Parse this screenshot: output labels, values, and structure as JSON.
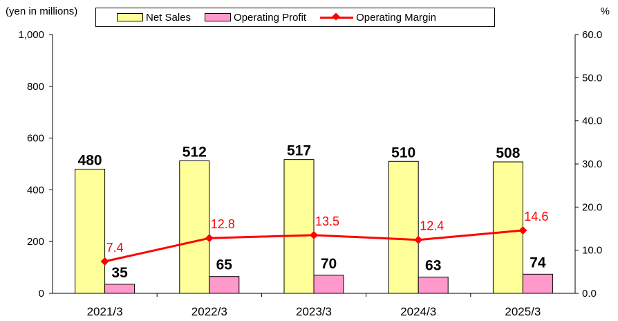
{
  "units": {
    "left": "(yen in millions)",
    "right": "%"
  },
  "legend": {
    "net_sales": "Net Sales",
    "operating_profit": "Operating Profit",
    "operating_margin": "Operating Margin"
  },
  "colors": {
    "net_sales": "#ffff99",
    "operating_profit": "#ff99cc",
    "operating_margin": "#ff0000"
  },
  "chart_data": {
    "type": "bar",
    "categories": [
      "2021/3",
      "2022/3",
      "2023/3",
      "2024/3",
      "2025/3"
    ],
    "series": [
      {
        "name": "Net Sales",
        "type": "bar",
        "axis": "left",
        "values": [
          480,
          512,
          517,
          510,
          508
        ]
      },
      {
        "name": "Operating Profit",
        "type": "bar",
        "axis": "left",
        "values": [
          35,
          65,
          70,
          63,
          74
        ]
      },
      {
        "name": "Operating Margin",
        "type": "line",
        "axis": "right",
        "values": [
          7.4,
          12.8,
          13.5,
          12.4,
          14.6
        ]
      }
    ],
    "y_left": {
      "min": 0,
      "max": 1000,
      "ticks": [
        "0",
        "200",
        "400",
        "600",
        "800",
        "1,000"
      ]
    },
    "y_right": {
      "min": 0,
      "max": 60,
      "ticks": [
        "0.0",
        "10.0",
        "20.0",
        "30.0",
        "40.0",
        "50.0",
        "60.0"
      ]
    },
    "grid": false,
    "legend_position": "top"
  }
}
